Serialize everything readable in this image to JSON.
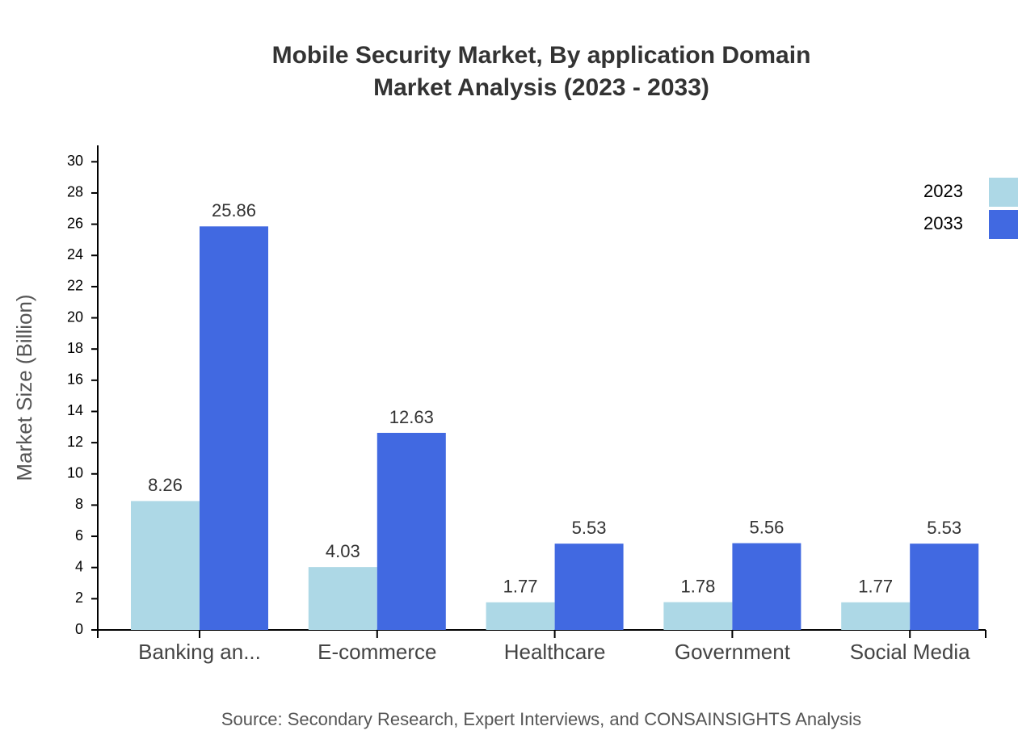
{
  "chart_data": {
    "type": "bar",
    "title": "Mobile Security Market, By application Domain",
    "subtitle": "Market Analysis (2023 - 2033)",
    "y_label": "Market Size (Billion)",
    "source": "Source: Secondary Research, Expert Interviews, and CONSAINSIGHTS Analysis",
    "categories": [
      "Banking an...",
      "E-commerce",
      "Healthcare",
      "Government",
      "Social Media"
    ],
    "series": [
      {
        "name": "2023",
        "color": "#add8e6",
        "values": [
          8.26,
          4.03,
          1.77,
          1.78,
          1.77
        ]
      },
      {
        "name": "2033",
        "color": "#4169e1",
        "values": [
          25.86,
          12.63,
          5.53,
          5.56,
          5.53
        ]
      }
    ],
    "ylim": [
      0,
      31
    ],
    "yticks": [
      0,
      2,
      4,
      6,
      8,
      10,
      12,
      14,
      16,
      18,
      20,
      22,
      24,
      26,
      28,
      30
    ],
    "legend": "top-right"
  }
}
